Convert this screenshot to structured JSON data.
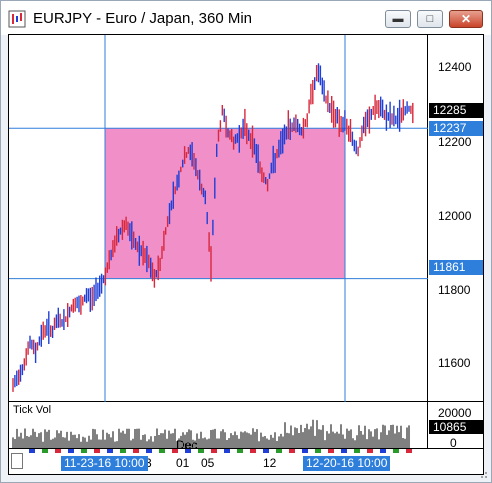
{
  "window": {
    "title": "EURJPY - Euro / Japan, 360 Min",
    "icon": "chart-app-icon",
    "controls": {
      "minimize": "minimize-icon",
      "maximize": "maximize-icon",
      "close": "close-icon"
    }
  },
  "price_axis": {
    "ticks": [
      "12400",
      "12200",
      "12000",
      "11800",
      "11600"
    ],
    "current_price": "12285",
    "cursor_price_top": "12237",
    "cursor_price_bottom": "11861"
  },
  "volume": {
    "label": "Tick Vol",
    "axis_top": "20000",
    "axis_bottom": "0",
    "current": "10865"
  },
  "time_axis": {
    "labels": [
      {
        "text": "3"
      },
      {
        "text": "01"
      },
      {
        "text": "05"
      },
      {
        "text": "12"
      }
    ],
    "month_label": "Dec",
    "cursor_start": "11-23-16 10:00",
    "cursor_end": "12-20-16 10:00"
  },
  "colors": {
    "selection": "#f08fc8",
    "crosshair": "#2e7fdc",
    "bar_up": "#1f3fd6",
    "bar_down": "#d8283c"
  },
  "chart_data": {
    "type": "bar",
    "y_range": [
      11550,
      12470
    ],
    "selection": {
      "price_high": 12237,
      "price_low": 11861
    },
    "series": [
      {
        "values": [
          11590,
          11620,
          11650,
          11700,
          11680,
          11720,
          11740,
          11730,
          11760,
          11750,
          11780,
          11800,
          11790,
          11820,
          11810,
          11840,
          11860,
          11900,
          11950,
          11980,
          12000,
          11960,
          11940,
          11920,
          11900,
          11860,
          11900,
          11980,
          12050,
          12100,
          12150,
          12180,
          12160,
          12100,
          12060,
          11900,
          12180,
          12280,
          12230,
          12200,
          12220,
          12240,
          12210,
          12180,
          12120,
          12100,
          12150,
          12180,
          12220,
          12240,
          12250,
          12230,
          12260,
          12340,
          12380,
          12320,
          12290,
          12270,
          12250,
          12240,
          12210,
          12180,
          12240,
          12260,
          12290,
          12280,
          12270,
          12260,
          12260,
          12280,
          12285
        ]
      }
    ]
  }
}
